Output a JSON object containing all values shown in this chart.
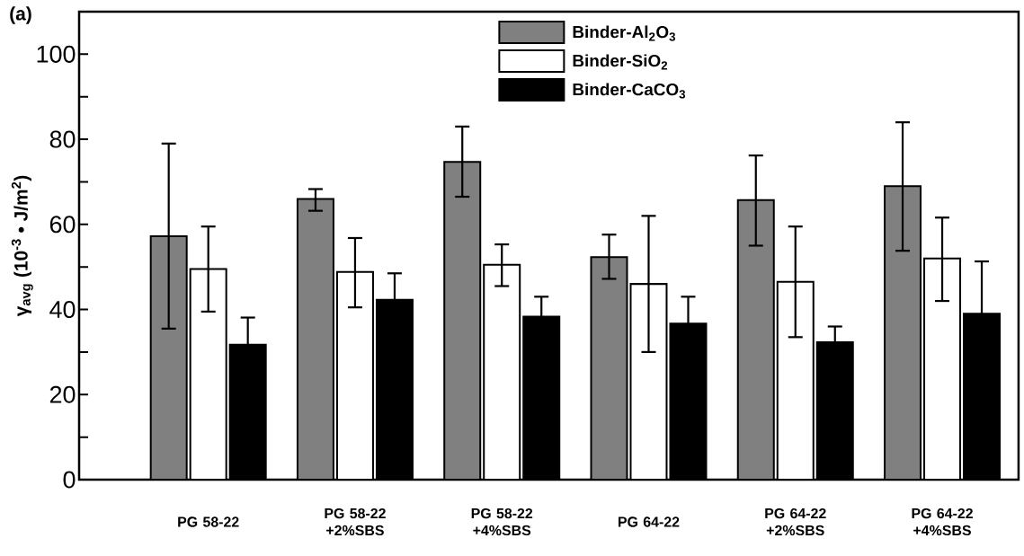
{
  "chart_data": {
    "type": "bar",
    "annotations": [
      "(a)"
    ],
    "ylabel": "γ$_{avg}$ (10$^{-3}$ • J/m$^{2}$)",
    "categories": [
      "PG 58-22",
      "PG 58-22 +2%SBS",
      "PG 58-22 +4%SBS",
      "PG 64-22",
      "PG 64-22 +2%SBS",
      "PG 64-22 +4%SBS"
    ],
    "series": [
      {
        "name": "Binder-Al$_{2}$O$_{3}$",
        "color": "#808080",
        "values": [
          57.2,
          66,
          74.7,
          52.3,
          65.7,
          69
        ],
        "errors": [
          [
            35.5,
            79
          ],
          [
            63.2,
            68.3
          ],
          [
            66.5,
            83
          ],
          [
            47.2,
            57.6
          ],
          [
            55,
            76.2
          ],
          [
            53.8,
            84
          ]
        ]
      },
      {
        "name": "Binder-SiO$_{2}$",
        "color": "#ffffff",
        "values": [
          49.5,
          48.8,
          50.5,
          46,
          46.5,
          52
        ],
        "errors": [
          [
            39.5,
            59.5
          ],
          [
            40.5,
            56.8
          ],
          [
            45.5,
            55.3
          ],
          [
            30,
            62
          ],
          [
            33.5,
            59.5
          ],
          [
            42,
            61.6
          ]
        ]
      },
      {
        "name": "Binder-CaCO$_{3}$",
        "color": "#000000",
        "values": [
          31.7,
          42.3,
          38.3,
          36.7,
          32.3,
          39
        ],
        "errors": [
          6.4,
          6.2,
          4.7,
          6.3,
          3.7,
          12.3
        ]
      }
    ],
    "ylim": [
      0,
      110
    ],
    "yticks": [
      0,
      {
        "value": 10,
        "label": null
      },
      20,
      {
        "value": 30,
        "label": null
      },
      40,
      {
        "value": 50,
        "label": null
      },
      60,
      {
        "value": 70,
        "label": null
      },
      80,
      {
        "value": 90,
        "label": null
      },
      100
    ],
    "legend": "top"
  }
}
